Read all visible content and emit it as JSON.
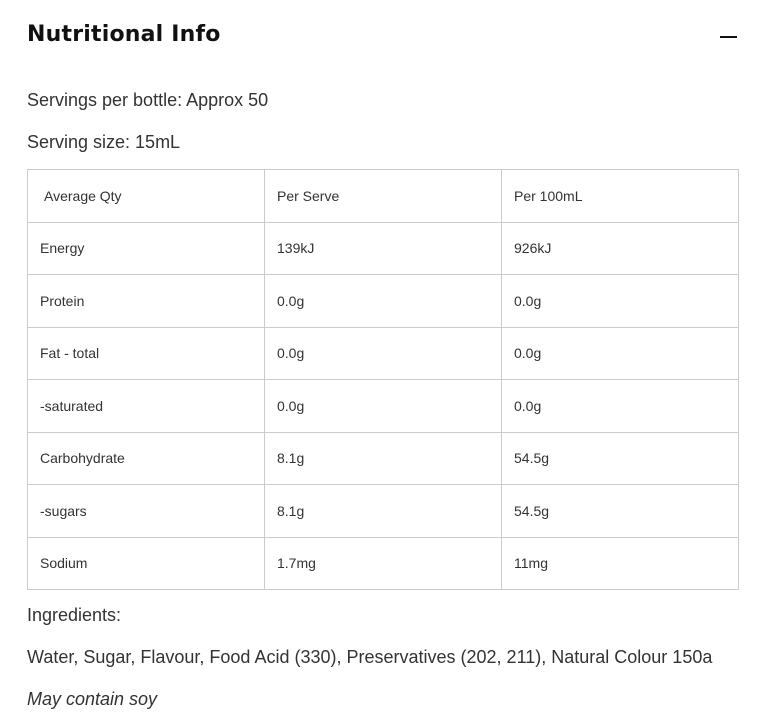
{
  "section": {
    "title": "Nutritional Info",
    "collapse_icon": "minus-icon"
  },
  "servings_per_bottle": "Servings per bottle: Approx 50",
  "serving_size": "Serving size: 15mL",
  "table": {
    "headers": [
      "Average Qty",
      "Per Serve",
      "Per 100mL"
    ],
    "rows": [
      [
        "Energy",
        "139kJ",
        "926kJ"
      ],
      [
        "Protein",
        "0.0g",
        "0.0g"
      ],
      [
        "Fat - total",
        "0.0g",
        "0.0g"
      ],
      [
        "-saturated",
        "0.0g",
        "0.0g"
      ],
      [
        "Carbohydrate",
        "8.1g",
        "54.5g"
      ],
      [
        "-sugars",
        "8.1g",
        "54.5g"
      ],
      [
        "Sodium",
        "1.7mg",
        "11mg"
      ]
    ]
  },
  "ingredients": {
    "label": "Ingredients:",
    "text": "Water, Sugar, Flavour, Food Acid (330), Preservatives (202, 211), Natural Colour 150a",
    "allergen": "May contain soy"
  }
}
